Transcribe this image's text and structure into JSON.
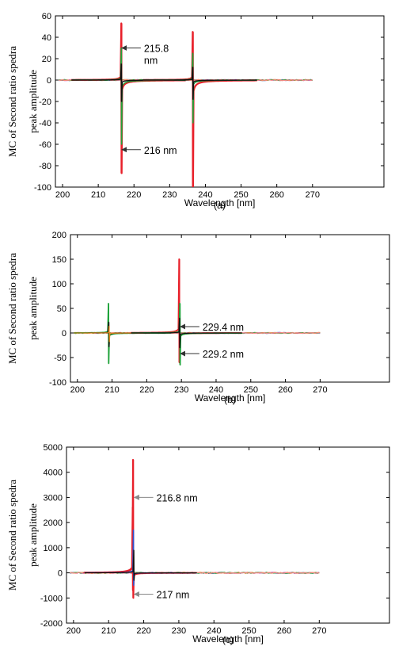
{
  "colors": {
    "red": "#e8202a",
    "green": "#1fa33a",
    "blue": "#2a55d6",
    "magenta": "#c238c8",
    "orange": "#e08a1a",
    "black": "#111111",
    "pink": "#ff8a8a",
    "annotation_arrow": "#333333",
    "annotation_arrow_light": "#888888"
  },
  "chart_data": [
    {
      "type": "line",
      "panel_label": "(a)",
      "xlabel": "Wavelength [nm]",
      "ylabel": [
        "MC of Second ratio spedra",
        "peak amplitude"
      ],
      "xlim": [
        198,
        290
      ],
      "ylim": [
        -100,
        60
      ],
      "xticks": [
        200,
        210,
        220,
        230,
        240,
        250,
        260,
        270
      ],
      "yticks": [
        -100,
        -80,
        -60,
        -40,
        -20,
        0,
        20,
        40,
        60
      ],
      "x_end": 270,
      "grid": false,
      "features": [
        {
          "x": 216.5,
          "peak": 53,
          "trough": -87,
          "color": "red",
          "width": 2.2
        },
        {
          "x": 216.5,
          "peak": 30,
          "trough": -60,
          "color": "green",
          "width": 1.4
        },
        {
          "x": 216.5,
          "peak": 15,
          "trough": -20,
          "color": "black",
          "width": 1.4
        },
        {
          "x": 236.5,
          "peak": 45,
          "trough": -102,
          "color": "red",
          "width": 2.2
        },
        {
          "x": 236.5,
          "peak": 25,
          "trough": -40,
          "color": "green",
          "width": 1.4
        },
        {
          "x": 236.5,
          "peak": 12,
          "trough": -18,
          "color": "black",
          "width": 1.4
        }
      ],
      "annotations": [
        {
          "text": [
            "215.8",
            "nm"
          ],
          "x": 216.6,
          "y": 30,
          "color": "annotation_arrow"
        },
        {
          "text": [
            "216 nm"
          ],
          "x": 216.6,
          "y": -65,
          "color": "annotation_arrow"
        }
      ]
    },
    {
      "type": "line",
      "panel_label": "(b)",
      "xlabel": "Wavelength [nm]",
      "ylabel": [
        "MC of Second ratio spedra",
        "peak amplitude"
      ],
      "xlim": [
        198,
        290
      ],
      "ylim": [
        -100,
        200
      ],
      "xticks": [
        200,
        210,
        220,
        230,
        240,
        250,
        260,
        270
      ],
      "yticks": [
        -100,
        -50,
        0,
        50,
        100,
        150,
        200
      ],
      "x_end": 270,
      "grid": false,
      "features": [
        {
          "x": 209,
          "peak": 60,
          "trough": -62,
          "color": "green",
          "width": 1.6
        },
        {
          "x": 209.1,
          "peak": 22,
          "trough": -28,
          "color": "black",
          "width": 1.2
        },
        {
          "x": 209.2,
          "peak": 14,
          "trough": -18,
          "color": "orange",
          "width": 1.0
        },
        {
          "x": 229.4,
          "peak": 150,
          "trough": -60,
          "color": "red",
          "width": 2.0
        },
        {
          "x": 229.6,
          "peak": 60,
          "trough": -65,
          "color": "green",
          "width": 1.6
        },
        {
          "x": 229.5,
          "peak": 30,
          "trough": -30,
          "color": "black",
          "width": 1.2
        }
      ],
      "annotations": [
        {
          "text": [
            "229.4 nm"
          ],
          "x": 229.7,
          "y": 13,
          "color": "annotation_arrow"
        },
        {
          "text": [
            "229.2 nm"
          ],
          "x": 229.7,
          "y": -42,
          "color": "annotation_arrow"
        }
      ]
    },
    {
      "type": "line",
      "panel_label": "(c)",
      "xlabel": "Wavelength [nm]",
      "ylabel": [
        "MC of Second ratio spedra",
        "peak amplitude"
      ],
      "xlim": [
        198,
        290
      ],
      "ylim": [
        -2000,
        5000
      ],
      "xticks": [
        200,
        210,
        220,
        230,
        240,
        250,
        260,
        270
      ],
      "yticks": [
        -2000,
        -1000,
        0,
        1000,
        2000,
        3000,
        4000,
        5000
      ],
      "x_end": 270,
      "grid": false,
      "features": [
        {
          "x": 217,
          "peak": 4500,
          "trough": -1000,
          "color": "red",
          "width": 2.0
        },
        {
          "x": 216.8,
          "peak": 2600,
          "trough": -700,
          "color": "red",
          "width": 1.2
        },
        {
          "x": 217.1,
          "peak": 1700,
          "trough": -500,
          "color": "blue",
          "width": 1.2
        },
        {
          "x": 217.2,
          "peak": 900,
          "trough": -300,
          "color": "black",
          "width": 1.2
        }
      ],
      "annotations": [
        {
          "text": [
            "216.8 nm"
          ],
          "x": 217.3,
          "y": 3000,
          "color": "annotation_arrow_light"
        },
        {
          "text": [
            "217 nm"
          ],
          "x": 217.3,
          "y": -850,
          "color": "annotation_arrow_light"
        }
      ]
    }
  ]
}
